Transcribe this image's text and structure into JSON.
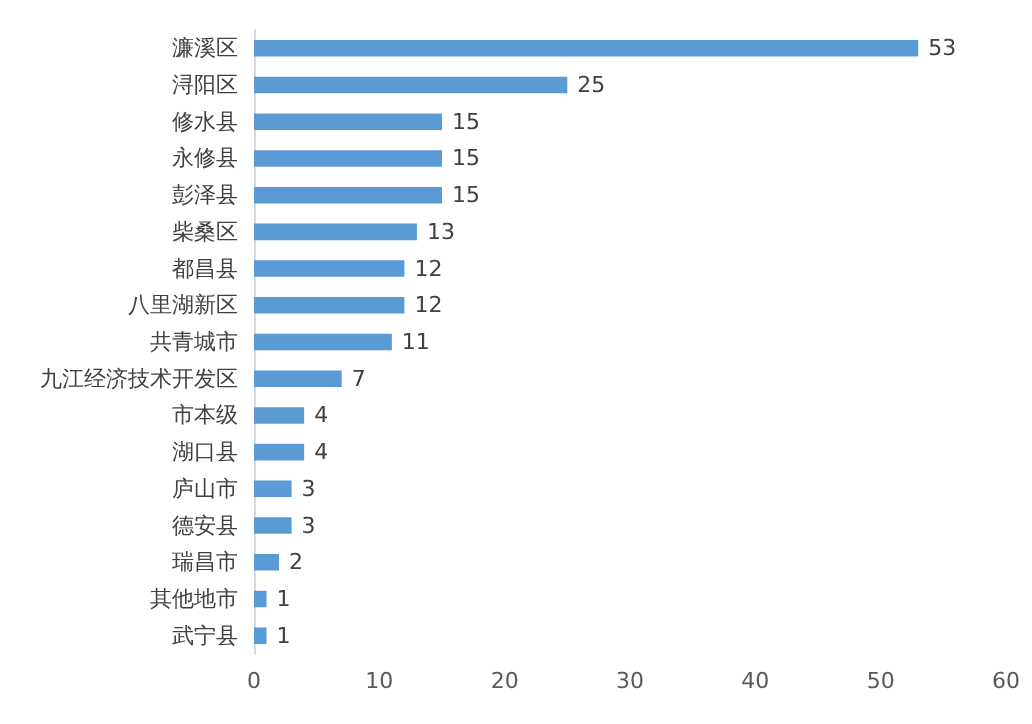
{
  "chart_data": {
    "type": "bar",
    "orientation": "horizontal",
    "categories": [
      "濂溪区",
      "浔阳区",
      "修水县",
      "永修县",
      "彭泽县",
      "柴桑区",
      "都昌县",
      "八里湖新区",
      "共青城市",
      "九江经济技术开发区",
      "市本级",
      "湖口县",
      "庐山市",
      "德安县",
      "瑞昌市",
      "其他地市",
      "武宁县"
    ],
    "values": [
      53,
      25,
      15,
      15,
      15,
      13,
      12,
      12,
      11,
      7,
      4,
      4,
      3,
      3,
      2,
      1,
      1
    ],
    "color": "#5b9bd5",
    "xlim": [
      0,
      60
    ],
    "xticks": [
      0,
      10,
      20,
      30,
      40,
      50,
      60
    ],
    "grid": false,
    "data_labels": true
  }
}
